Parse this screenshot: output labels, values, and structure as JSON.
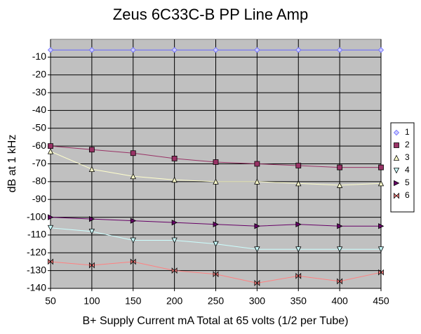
{
  "chart_data": {
    "type": "line",
    "title": "Zeus 6C33C-B PP Line Amp",
    "x_label": "B+ Supply Current mA Total at 65 volts (1/2 per Tube)",
    "y_label": "dB at 1 kHz",
    "x": [
      50,
      100,
      150,
      200,
      250,
      300,
      350,
      400,
      450
    ],
    "xlim": [
      50,
      450
    ],
    "xticks": [
      50,
      100,
      150,
      200,
      250,
      300,
      350,
      400,
      450
    ],
    "ylim": [
      -140,
      0
    ],
    "yticks": [
      -140,
      -130,
      -120,
      -110,
      -100,
      -90,
      -80,
      -70,
      -60,
      -50,
      -40,
      -30,
      -20,
      -10
    ],
    "grid": true,
    "legend": "right",
    "series": [
      {
        "name": "1",
        "color": "#6666ff",
        "marker": "diamond",
        "values": [
          -6,
          -6,
          -6,
          -6,
          -6,
          -6,
          -6,
          -6,
          -6
        ]
      },
      {
        "name": "2",
        "color": "#993366",
        "marker": "square",
        "values": [
          -60,
          -62,
          -64,
          -67,
          -69,
          -70,
          -71,
          -72,
          -72
        ]
      },
      {
        "name": "3",
        "color": "#ffffcc",
        "marker": "triangle",
        "values": [
          -63,
          -73,
          -77,
          -79,
          -80,
          -80,
          -81,
          -82,
          -81
        ]
      },
      {
        "name": "4",
        "color": "#ccffff",
        "marker": "triangle-down",
        "values": [
          -106,
          -108,
          -113,
          -113,
          -115,
          -118,
          -118,
          -118,
          -118
        ]
      },
      {
        "name": "5",
        "color": "#660066",
        "marker": "triangle-right",
        "values": [
          -100,
          -101,
          -102,
          -103,
          -104,
          -105,
          -104,
          -105,
          -105
        ]
      },
      {
        "name": "6",
        "color": "#ff8080",
        "marker": "bowtie",
        "values": [
          -125,
          -127,
          -125,
          -130,
          -132,
          -137,
          -133,
          -136,
          -131
        ]
      }
    ]
  }
}
